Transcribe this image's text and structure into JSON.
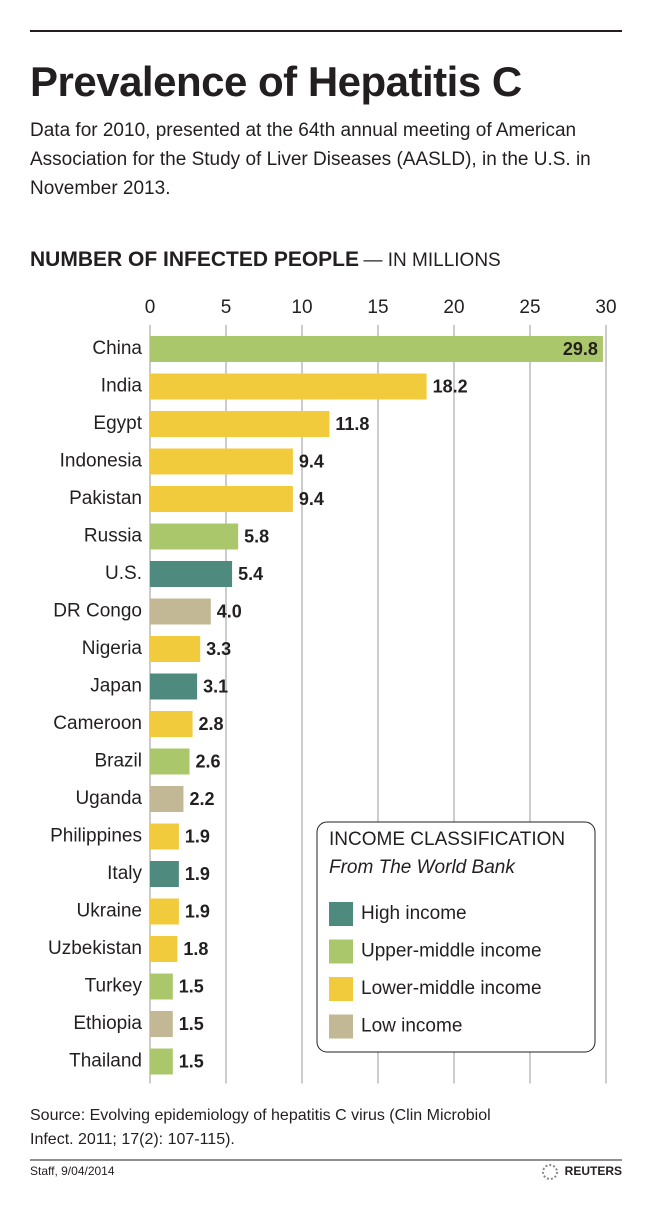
{
  "chart_data": {
    "type": "bar",
    "title": "Prevalence of Hepatitis C",
    "subtitle": "Data for 2010, presented at the 64th annual meeting of American Association for the Study of Liver Diseases (AASLD), in the U.S. in November 2013.",
    "axis_title": "NUMBER OF INFECTED PEOPLE",
    "axis_unit": "— IN MILLIONS",
    "categories": [
      "China",
      "India",
      "Egypt",
      "Indonesia",
      "Pakistan",
      "Russia",
      "U.S.",
      "DR Congo",
      "Nigeria",
      "Japan",
      "Cameroon",
      "Brazil",
      "Uganda",
      "Philippines",
      "Italy",
      "Ukraine",
      "Uzbekistan",
      "Turkey",
      "Ethiopia",
      "Thailand"
    ],
    "series": [
      {
        "name": "High income",
        "color": "#4f8a7e",
        "values": [
          null,
          null,
          null,
          null,
          null,
          null,
          5.4,
          null,
          null,
          3.1,
          null,
          null,
          null,
          null,
          1.9,
          null,
          null,
          null,
          null,
          null
        ],
        "value_labels": [
          null,
          null,
          null,
          null,
          null,
          null,
          "5.4",
          null,
          null,
          "3.1",
          null,
          null,
          null,
          null,
          "1.9",
          null,
          null,
          null,
          null,
          null
        ]
      },
      {
        "name": "Upper-middle income",
        "color": "#abc76b",
        "values": [
          29.8,
          null,
          null,
          null,
          null,
          5.8,
          null,
          null,
          null,
          null,
          null,
          2.6,
          null,
          null,
          null,
          null,
          null,
          1.5,
          null,
          1.5
        ],
        "value_labels": [
          "29.8",
          null,
          null,
          null,
          null,
          "5.8",
          null,
          null,
          null,
          null,
          null,
          "2.6",
          null,
          null,
          null,
          null,
          null,
          "1.5",
          null,
          "1.5"
        ]
      },
      {
        "name": "Lower-middle income",
        "color": "#f2cb3d",
        "values": [
          null,
          18.2,
          11.8,
          9.4,
          9.4,
          null,
          null,
          null,
          3.3,
          null,
          2.8,
          null,
          null,
          1.9,
          null,
          1.9,
          1.8,
          null,
          null,
          null
        ],
        "value_labels": [
          null,
          "18.2",
          "11.8",
          "9.4",
          "9.4",
          null,
          null,
          null,
          "3.3",
          null,
          "2.8",
          null,
          null,
          "1.9",
          null,
          "1.9",
          "1.8",
          null,
          null,
          null
        ]
      },
      {
        "name": "Low income",
        "color": "#c3b896",
        "values": [
          null,
          null,
          null,
          null,
          null,
          null,
          null,
          4,
          null,
          null,
          null,
          null,
          2.2,
          null,
          null,
          null,
          null,
          null,
          1.5,
          null
        ],
        "value_labels": [
          null,
          null,
          null,
          null,
          null,
          null,
          null,
          "4.0",
          null,
          null,
          null,
          null,
          "2.2",
          null,
          null,
          null,
          null,
          null,
          "1.5",
          null
        ]
      }
    ],
    "xlim": [
      0,
      30
    ],
    "xticks": [
      0,
      5,
      10,
      15,
      20,
      25,
      30
    ],
    "grid": true,
    "legend_title": "INCOME CLASSIFICATION",
    "legend_subtitle": "From The World Bank",
    "legend_position": "lower right",
    "source": "Source: Evolving epidemiology of hepatitis C virus (Clin Microbiol Infect. 2011; 17(2): 107-115).",
    "credit": "Staff, 9/04/2014",
    "logo": "REUTERS"
  }
}
